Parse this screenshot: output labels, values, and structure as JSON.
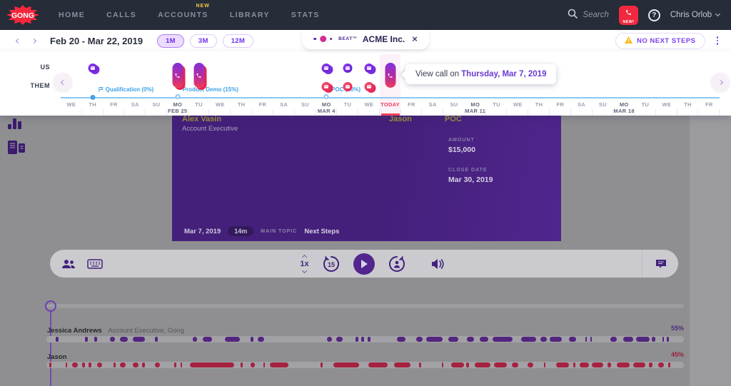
{
  "nav": {
    "logo": "GONG",
    "items": [
      {
        "label": "HOME"
      },
      {
        "label": "CALLS"
      },
      {
        "label": "ACCOUNTS",
        "badge": "NEW"
      },
      {
        "label": "LIBRARY"
      },
      {
        "label": "STATS"
      }
    ],
    "search_placeholder": "Search",
    "new_badge": "NEW!",
    "help_label": "?",
    "user_name": "Chris Orlob"
  },
  "tab": {
    "product": "BEAT™",
    "account": "ACME Inc.",
    "close": "×"
  },
  "toolbar": {
    "date_range": "Feb 20 - Mar 22, 2019",
    "ranges": [
      "1M",
      "3M",
      "12M"
    ],
    "active_range": "1M",
    "no_next_steps_label": "NO NEXT STEPS"
  },
  "timeline": {
    "row_labels": [
      "US",
      "THEM"
    ],
    "days": [
      {
        "d": "WE"
      },
      {
        "d": "TH"
      },
      {
        "d": "FR"
      },
      {
        "d": "SA"
      },
      {
        "d": "SU"
      },
      {
        "d": "MO",
        "sub": "FEB 25"
      },
      {
        "d": "TU"
      },
      {
        "d": "WE"
      },
      {
        "d": "TH"
      },
      {
        "d": "FR"
      },
      {
        "d": "SA"
      },
      {
        "d": "SU"
      },
      {
        "d": "MO",
        "sub": "MAR 4"
      },
      {
        "d": "TU"
      },
      {
        "d": "WE"
      },
      {
        "d": "TODAY",
        "today": true
      },
      {
        "d": "FR"
      },
      {
        "d": "SA"
      },
      {
        "d": "SU"
      },
      {
        "d": "MO",
        "sub": "MAR 11"
      },
      {
        "d": "TU"
      },
      {
        "d": "WE"
      },
      {
        "d": "TH"
      },
      {
        "d": "FR"
      },
      {
        "d": "SA"
      },
      {
        "d": "SU"
      },
      {
        "d": "MO",
        "sub": "MAR 18"
      },
      {
        "d": "TU"
      },
      {
        "d": "WE"
      },
      {
        "d": "TH"
      },
      {
        "d": "FR"
      }
    ],
    "stages": [
      {
        "col": 1,
        "label": "Qualification (0%)",
        "flag": true,
        "filled": true
      },
      {
        "col": 5,
        "label": "Product Demo (15%)",
        "flag": false,
        "filled": false
      },
      {
        "col": 12,
        "label": "POC (60%)",
        "flag": false,
        "filled": false
      }
    ],
    "events": [
      {
        "type": "email",
        "row": 0,
        "col": 1,
        "color": "purple",
        "stacked": true
      },
      {
        "type": "call",
        "col": 5,
        "stacked": true
      },
      {
        "type": "call",
        "col": 6,
        "stacked": true
      },
      {
        "type": "email",
        "row": 0,
        "col": 12,
        "color": "purple",
        "stacked": true
      },
      {
        "type": "email",
        "row": 1,
        "col": 12,
        "color": "red",
        "stacked": true
      },
      {
        "type": "email",
        "row": 0,
        "col": 13,
        "color": "purple",
        "stacked": false
      },
      {
        "type": "email",
        "row": 1,
        "col": 13,
        "color": "red",
        "stacked": false
      },
      {
        "type": "email",
        "row": 0,
        "col": 14,
        "color": "purple",
        "stacked": true
      },
      {
        "type": "email",
        "row": 1,
        "col": 14,
        "color": "red",
        "stacked": true
      },
      {
        "type": "call",
        "col": 15,
        "stacked": false
      }
    ],
    "tooltip": {
      "prefix": "View call on",
      "date": "Thursday, Mar 7, 2019"
    }
  },
  "video": {
    "speaker_name": "Alex Vasin",
    "speaker_role": "Account Executive",
    "speaker2_name": "Jason",
    "stage_label": "POC",
    "amount_label": "AMOUNT",
    "amount_value": "$15,000",
    "close_date_label": "CLOSE DATE",
    "close_date_value": "Mar 30, 2019",
    "call_date": "Mar 7, 2019",
    "duration": "14m",
    "main_topic_label": "MAIN TOPIC",
    "main_topic_value": "Next Steps"
  },
  "player": {
    "speed": "1x",
    "skip_back": "15"
  },
  "tracks": [
    {
      "name": "Jessica Andrews",
      "role": "Account Executive, Gong",
      "pct": "55%",
      "segments": [
        [
          1.5,
          0.4
        ],
        [
          6,
          0.5
        ],
        [
          7.5,
          0.5
        ],
        [
          10,
          0.8
        ],
        [
          11.5,
          1.3
        ],
        [
          13.5,
          2
        ],
        [
          17,
          0.5
        ],
        [
          23,
          0.6
        ],
        [
          24.5,
          1.5
        ],
        [
          28,
          2.3
        ],
        [
          32,
          0.5
        ],
        [
          33.2,
          0.9
        ],
        [
          44,
          0.8
        ],
        [
          45.5,
          1
        ],
        [
          48.5,
          0.4
        ],
        [
          49.4,
          0.4
        ],
        [
          50.4,
          0.4
        ],
        [
          55,
          1.3
        ],
        [
          58,
          1
        ],
        [
          59.6,
          2.6
        ],
        [
          63,
          1.6
        ],
        [
          66,
          1.1
        ],
        [
          68,
          1.3
        ],
        [
          70,
          3.1
        ],
        [
          74.5,
          2.3
        ],
        [
          77.5,
          1
        ],
        [
          79,
          1.9
        ],
        [
          82,
          1.1
        ],
        [
          84.5,
          0.3
        ],
        [
          85.3,
          0.3
        ],
        [
          88.5,
          1
        ],
        [
          90.5,
          1.6
        ],
        [
          92.5,
          2.1
        ],
        [
          95,
          0.5
        ],
        [
          96.6,
          0.3
        ],
        [
          97.3,
          0.3
        ]
      ]
    },
    {
      "name": "Jason",
      "role": "",
      "pct": "45%",
      "segments": [
        [
          0.5,
          0.3
        ],
        [
          3,
          0.3
        ],
        [
          4,
          0.9
        ],
        [
          5.6,
          0.4
        ],
        [
          6.6,
          0.4
        ],
        [
          8,
          0.7
        ],
        [
          10.5,
          0.4
        ],
        [
          11.5,
          0.9
        ],
        [
          13.5,
          1
        ],
        [
          15,
          0.4
        ],
        [
          17,
          0.8
        ],
        [
          20,
          0.4
        ],
        [
          21,
          0.3
        ],
        [
          22.5,
          7
        ],
        [
          30.5,
          0.3
        ],
        [
          32,
          0.7
        ],
        [
          34,
          0.3
        ],
        [
          35,
          3
        ],
        [
          43,
          0.3
        ],
        [
          45,
          4
        ],
        [
          50.5,
          3
        ],
        [
          54.5,
          2.6
        ],
        [
          58.5,
          0.3
        ],
        [
          62,
          0.3
        ],
        [
          63.5,
          2
        ],
        [
          65.9,
          0.4
        ],
        [
          67.2,
          2.5
        ],
        [
          70.2,
          2
        ],
        [
          73,
          1
        ],
        [
          75.5,
          0.9
        ],
        [
          78,
          0.3
        ],
        [
          80,
          2
        ],
        [
          82.6,
          0.4
        ],
        [
          83.6,
          1.5
        ],
        [
          85.6,
          1.8
        ],
        [
          88,
          0.6
        ],
        [
          89.5,
          2
        ],
        [
          92,
          2
        ],
        [
          94.5,
          0.6
        ],
        [
          96,
          0.9
        ],
        [
          97.5,
          0.4
        ]
      ]
    }
  ],
  "colors": {
    "accent_purple": "#7a3ff0",
    "brand_red": "#f2293e",
    "today_red": "#f2405a",
    "stage_blue": "#3ea2e8",
    "track_purple": "#54257f",
    "track_crimson": "#a62342",
    "warning_yellow": "#f5b81e"
  }
}
